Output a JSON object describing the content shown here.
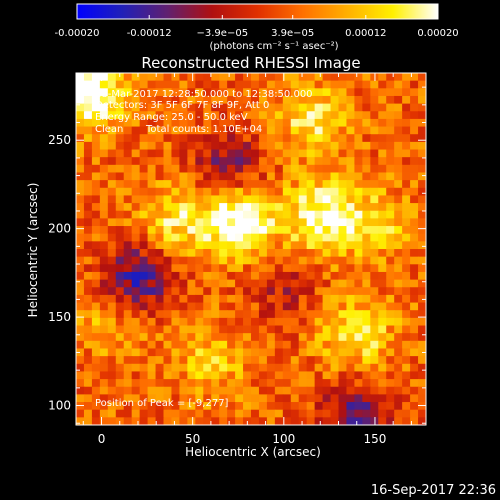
{
  "chart_data": {
    "type": "heatmap",
    "title": "Reconstructed RHESSI Image",
    "xlabel": "Heliocentric X (arcsec)",
    "ylabel": "Heliocentric Y (arcsec)",
    "xlim": [
      -14,
      178
    ],
    "ylim": [
      89,
      288
    ],
    "xticks": [
      0,
      50,
      100,
      150
    ],
    "yticks": [
      100,
      150,
      200,
      250
    ],
    "x_tick_labels": [
      "0",
      "50",
      "100",
      "150"
    ],
    "y_tick_labels": [
      "100",
      "150",
      "200",
      "250"
    ],
    "colorbar": {
      "range": [
        -0.0002,
        0.0002
      ],
      "tick_values": [
        -0.0002,
        -0.00012,
        -3.9e-05,
        3.9e-05,
        0.00012,
        0.0002
      ],
      "tick_labels": [
        "-0.00020",
        "-0.00012",
        "−3.9e−05",
        "3.9e−05",
        "0.00012",
        "0.00020"
      ],
      "unit_label": "(photons cm⁻² s⁻¹ asec⁻²)",
      "colors": [
        "#0000ff",
        "#2020b8",
        "#602070",
        "#b01010",
        "#e03000",
        "#ff7000",
        "#ffb000",
        "#fff000",
        "#ffffff"
      ]
    },
    "annotations": {
      "time": "28-Mar-2017 12:28:50.000 to 12:38:50.000",
      "detectors": "Detectors: 3F 5F 6F 7F 8F 9F, Att 0",
      "energy": "Energy Range: 25.0 - 50.0 keV",
      "method": "Clean",
      "counts": "Total counts: 1.10E+04",
      "peak": "Position of Peak = [-9,277]"
    },
    "peak_position": [
      -9,
      277
    ],
    "intensity_features": [
      {
        "x": 75,
        "y": 205,
        "value": 0.00019
      },
      {
        "x": 120,
        "y": 207,
        "value": 0.00016
      },
      {
        "x": 40,
        "y": 205,
        "value": 0.00011
      },
      {
        "x": 150,
        "y": 203,
        "value": 0.0001
      },
      {
        "x": -8,
        "y": 277,
        "value": 0.0002
      },
      {
        "x": 115,
        "y": 262,
        "value": 0.00011
      },
      {
        "x": 140,
        "y": 140,
        "value": 0.00012
      },
      {
        "x": 60,
        "y": 125,
        "value": 8e-05
      },
      {
        "x": 5,
        "y": 148,
        "value": 6e-05
      },
      {
        "x": 20,
        "y": 172,
        "value": -0.00016
      },
      {
        "x": 70,
        "y": 235,
        "value": -0.00012
      },
      {
        "x": 140,
        "y": 95,
        "value": -0.00013
      },
      {
        "x": 100,
        "y": 165,
        "value": -7e-05
      }
    ]
  },
  "footer": {
    "timestamp": "16-Sep-2017 22:36"
  }
}
